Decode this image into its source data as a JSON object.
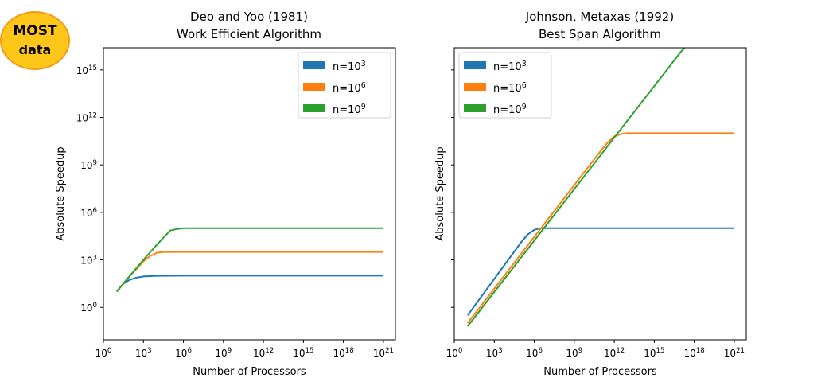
{
  "badge": {
    "line1": "MOST",
    "line2": "data"
  },
  "chart_data": [
    {
      "type": "line",
      "title": [
        "Deo and Yoo (1981)",
        "Work Efficient Algorithm"
      ],
      "xlabel": "Number of Processors",
      "ylabel": "Absolute Speedup",
      "x_scale": "log",
      "y_scale": "log",
      "x_tick_exponents": [
        0,
        3,
        6,
        9,
        12,
        15,
        18,
        21
      ],
      "y_tick_exponents": [
        0,
        3,
        6,
        9,
        12,
        15
      ],
      "xlim_exp": [
        0,
        21.9
      ],
      "ylim_exp": [
        -2.05,
        16.4
      ],
      "legend": "top-right",
      "series": [
        {
          "name": "n=10^3",
          "base_exp": "3",
          "color": "#1f77b4",
          "points": [
            [
              1,
              1.0
            ],
            [
              1.5,
              1.5
            ],
            [
              2,
              1.75
            ],
            [
              2.5,
              1.88
            ],
            [
              3,
              1.95
            ],
            [
              4,
              1.99
            ],
            [
              6,
              2.0
            ],
            [
              21,
              2.0
            ]
          ]
        },
        {
          "name": "n=10^6",
          "base_exp": "6",
          "color": "#ff7f0e",
          "points": [
            [
              1,
              1.0
            ],
            [
              2,
              2.0
            ],
            [
              3,
              2.9
            ],
            [
              3.5,
              3.25
            ],
            [
              4,
              3.45
            ],
            [
              4.5,
              3.5
            ],
            [
              5,
              3.5
            ],
            [
              21,
              3.5
            ]
          ]
        },
        {
          "name": "n=10^9",
          "base_exp": "9",
          "color": "#2ca02c",
          "points": [
            [
              1,
              1.0
            ],
            [
              2,
              2.0
            ],
            [
              3,
              3.0
            ],
            [
              4,
              3.95
            ],
            [
              4.5,
              4.4
            ],
            [
              5,
              4.85
            ],
            [
              5.5,
              4.95
            ],
            [
              6,
              5.0
            ],
            [
              21,
              5.0
            ]
          ]
        }
      ]
    },
    {
      "type": "line",
      "title": [
        "Johnson, Metaxas (1992)",
        "Best Span Algorithm"
      ],
      "xlabel": "Number of Processors",
      "ylabel": "Absolute Speedup",
      "x_scale": "log",
      "y_scale": "log",
      "x_tick_exponents": [
        0,
        3,
        6,
        9,
        12,
        15,
        18,
        21
      ],
      "y_tick_exponents": [
        0,
        3,
        6,
        9,
        12,
        15
      ],
      "xlim_exp": [
        0,
        21.9
      ],
      "ylim_exp": [
        -2.05,
        16.4
      ],
      "legend": "top-left",
      "series": [
        {
          "name": "n=10^3",
          "base_exp": "3",
          "color": "#1f77b4",
          "points": [
            [
              1,
              -0.5
            ],
            [
              5,
              4.1
            ],
            [
              5.5,
              4.6
            ],
            [
              6,
              4.9
            ],
            [
              6.5,
              5.0
            ],
            [
              7,
              5.0
            ],
            [
              21,
              5.0
            ]
          ]
        },
        {
          "name": "n=10^6",
          "base_exp": "6",
          "color": "#ff7f0e",
          "points": [
            [
              1,
              -1.0
            ],
            [
              11,
              9.9
            ],
            [
              11.5,
              10.4
            ],
            [
              12,
              10.8
            ],
            [
              12.5,
              10.95
            ],
            [
              13,
              11.0
            ],
            [
              21,
              11.0
            ]
          ]
        },
        {
          "name": "n=10^9",
          "base_exp": "9",
          "color": "#2ca02c",
          "points": [
            [
              1,
              -1.2
            ],
            [
              17,
              16.15
            ],
            [
              17.5,
              16.6
            ],
            [
              18,
              16.85
            ],
            [
              18.5,
              16.95
            ],
            [
              19,
              17.0
            ],
            [
              21,
              17.0
            ]
          ]
        }
      ]
    }
  ]
}
